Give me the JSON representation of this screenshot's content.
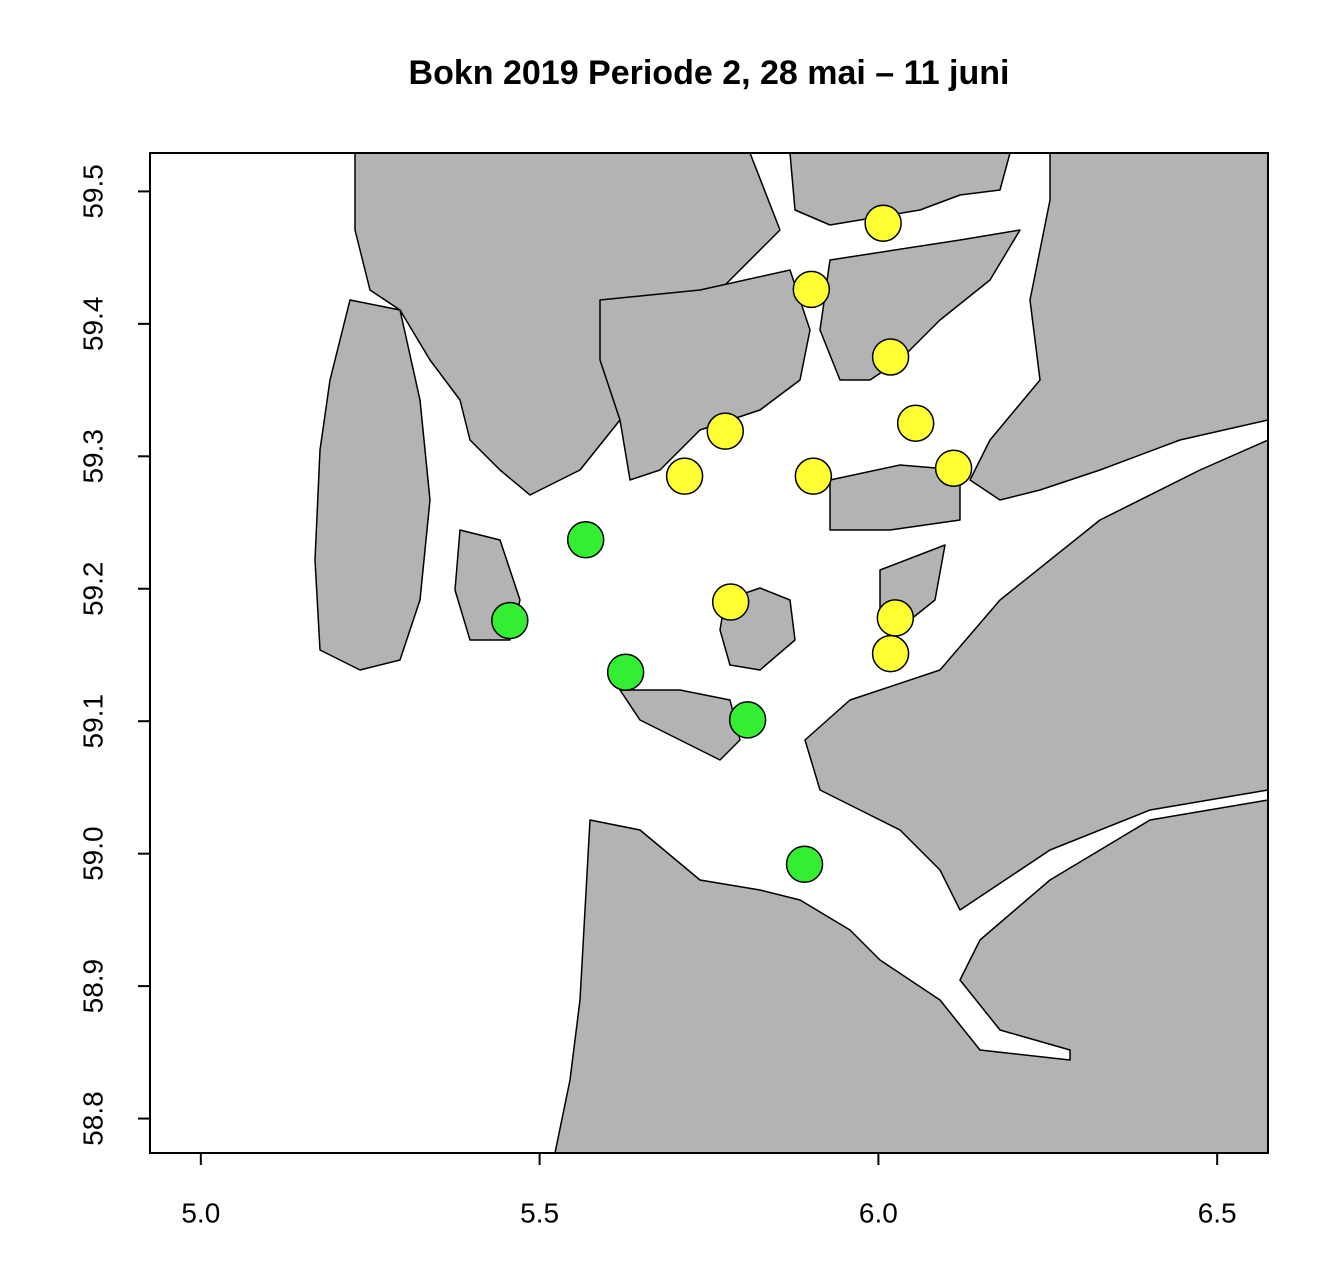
{
  "chart_data": {
    "type": "scatter",
    "title": "Bokn 2019 Periode 2, 28 mai – 11 juni",
    "x": [
      6.007,
      5.901,
      6.018,
      6.055,
      6.111,
      5.774,
      5.714,
      5.904,
      5.782,
      6.025,
      6.018,
      5.568,
      5.456,
      5.627,
      5.807,
      5.891
    ],
    "y": [
      59.476,
      59.426,
      59.375,
      59.325,
      59.291,
      59.319,
      59.285,
      59.285,
      59.19,
      59.178,
      59.151,
      59.237,
      59.176,
      59.137,
      59.101,
      58.992
    ],
    "colors": [
      "#ffff33",
      "#ffff33",
      "#ffff33",
      "#ffff33",
      "#ffff33",
      "#ffff33",
      "#ffff33",
      "#ffff33",
      "#ffff33",
      "#ffff33",
      "#ffff33",
      "#33ee33",
      "#33ee33",
      "#33ee33",
      "#33ee33",
      "#33ee33"
    ],
    "xlim": [
      4.925,
      6.575
    ],
    "ylim": [
      58.774,
      59.529
    ],
    "xticks": [
      {
        "value": 5,
        "label": "5.0"
      },
      5.5,
      {
        "value": 6,
        "label": "6.0"
      },
      6.5
    ],
    "yticks": [
      58.8,
      58.9,
      {
        "value": 59,
        "label": "59.0"
      },
      59.1,
      59.2,
      59.3,
      59.4,
      59.5
    ]
  }
}
